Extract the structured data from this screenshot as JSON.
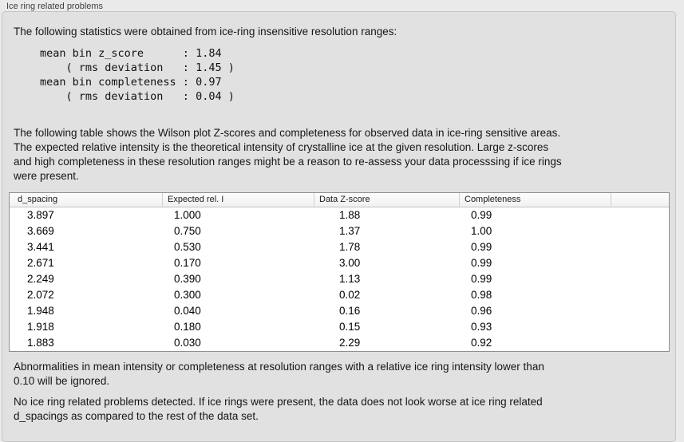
{
  "section_label": "Ice ring related problems",
  "colors": {
    "window_bg": "#eaeaea",
    "panel_bg": "#e1e1e1",
    "panel_border": "#c5c5c5",
    "table_border": "#8f8f8f",
    "table_header_bg": "#f6f6f6",
    "table_body_bg": "#ffffff"
  },
  "intro_text": "The following statistics were obtained from ice-ring insensitive resolution ranges:",
  "summary_stats": {
    "lines": [
      "mean bin z_score      : 1.84",
      "    ( rms deviation   : 1.45 )",
      "mean bin completeness : 0.97",
      "    ( rms deviation   : 0.04 )"
    ],
    "mean_bin_z_score": "1.84",
    "z_score_rms_deviation": "1.45",
    "mean_bin_completeness": "0.97",
    "completeness_rms_deviation": "0.04"
  },
  "table_description": [
    "The following table shows the Wilson plot Z-scores and completeness for observed data in ice-ring sensitive areas.",
    "The expected relative intensity is the theoretical intensity of crystalline ice at the given resolution. Large z-scores",
    "and high completeness in these resolution ranges might be a reason to re-assess your data processsing if ice rings",
    "were present."
  ],
  "ice_ring_table": {
    "columns": [
      "d_spacing",
      "Expected rel. I",
      "Data Z-score",
      "Completeness",
      ""
    ],
    "rows": [
      [
        "3.897",
        "1.000",
        "1.88",
        "0.99"
      ],
      [
        "3.669",
        "0.750",
        "1.37",
        "1.00"
      ],
      [
        "3.441",
        "0.530",
        "1.78",
        "0.99"
      ],
      [
        "2.671",
        "0.170",
        "3.00",
        "0.99"
      ],
      [
        "2.249",
        "0.390",
        "1.13",
        "0.99"
      ],
      [
        "2.072",
        "0.300",
        "0.02",
        "0.98"
      ],
      [
        "1.948",
        "0.040",
        "0.16",
        "0.96"
      ],
      [
        "1.918",
        "0.180",
        "0.15",
        "0.93"
      ],
      [
        "1.883",
        "0.030",
        "2.29",
        "0.92"
      ]
    ]
  },
  "ignore_note": [
    "Abnormalities in mean intensity or completeness at resolution ranges with a relative ice ring intensity lower than",
    "0.10 will be ignored."
  ],
  "conclusion": [
    "No ice ring related problems detected. If ice rings were present, the data does not look worse at ice ring related",
    "d_spacings as compared to the rest of the data set."
  ]
}
